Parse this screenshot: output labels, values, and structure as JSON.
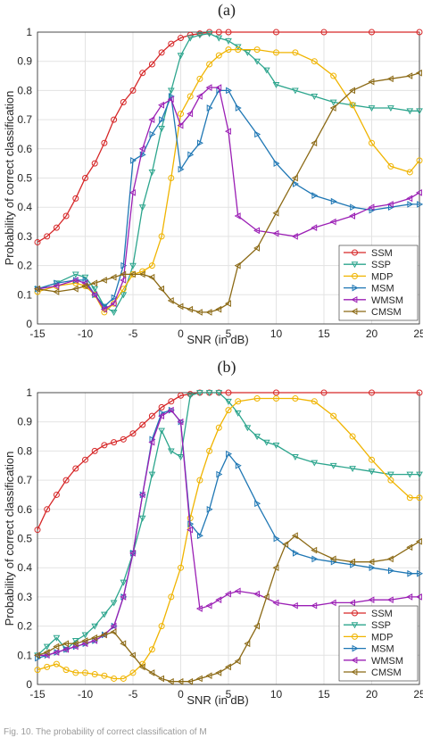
{
  "caption": "Fig. 10.   The probability of correct classification of M",
  "chart_data": [
    {
      "type": "line",
      "title": "(a)",
      "xlabel": "SNR (in dB)",
      "ylabel": "Probability of correct classification",
      "xlim": [
        -15,
        25
      ],
      "ylim": [
        0,
        1
      ],
      "xticks": [
        "-15",
        "-10",
        "-5",
        "0",
        "5",
        "10",
        "15",
        "20",
        "25"
      ],
      "yticks": [
        "0",
        "0.1",
        "0.2",
        "0.3",
        "0.4",
        "0.5",
        "0.6",
        "0.7",
        "0.8",
        "0.9",
        "1"
      ],
      "grid": true,
      "legend_position": "bottom-right",
      "series": [
        {
          "name": "SSM",
          "color": "#d62728",
          "marker": "circle",
          "x": [
            -15,
            -14,
            -13,
            -12,
            -11,
            -10,
            -9,
            -8,
            -7,
            -6,
            -5,
            -4,
            -3,
            -2,
            -1,
            0,
            1,
            2,
            3,
            4,
            5,
            10,
            15,
            20,
            25
          ],
          "y": [
            0.28,
            0.3,
            0.33,
            0.37,
            0.43,
            0.5,
            0.55,
            0.62,
            0.7,
            0.76,
            0.8,
            0.86,
            0.89,
            0.93,
            0.96,
            0.98,
            0.99,
            0.995,
            1,
            1,
            1,
            1,
            1,
            1,
            1
          ]
        },
        {
          "name": "SSP",
          "color": "#2ca58d",
          "marker": "triangle-down",
          "x": [
            -15,
            -13,
            -11,
            -10,
            -9,
            -8,
            -7,
            -6,
            -5,
            -4,
            -3,
            -2,
            -1,
            0,
            1,
            2,
            3,
            4,
            5,
            6,
            7,
            8,
            9,
            10,
            12,
            14,
            16,
            18,
            20,
            22,
            24,
            25
          ],
          "y": [
            0.12,
            0.14,
            0.17,
            0.16,
            0.12,
            0.06,
            0.04,
            0.1,
            0.2,
            0.4,
            0.52,
            0.67,
            0.8,
            0.92,
            0.98,
            0.99,
            0.995,
            0.98,
            0.97,
            0.95,
            0.93,
            0.9,
            0.87,
            0.82,
            0.8,
            0.78,
            0.76,
            0.75,
            0.74,
            0.74,
            0.73,
            0.73
          ]
        },
        {
          "name": "MDP",
          "color": "#f0b400",
          "marker": "circle",
          "x": [
            -15,
            -13,
            -11,
            -10,
            -9,
            -8,
            -7,
            -6,
            -5,
            -4,
            -3,
            -2,
            -1,
            0,
            1,
            2,
            3,
            4,
            5,
            6,
            8,
            10,
            12,
            14,
            16,
            18,
            20,
            22,
            24,
            25
          ],
          "y": [
            0.11,
            0.13,
            0.14,
            0.13,
            0.1,
            0.04,
            0.07,
            0.12,
            0.17,
            0.18,
            0.2,
            0.3,
            0.5,
            0.72,
            0.78,
            0.84,
            0.89,
            0.92,
            0.94,
            0.94,
            0.94,
            0.93,
            0.93,
            0.9,
            0.85,
            0.75,
            0.62,
            0.54,
            0.52,
            0.56
          ]
        },
        {
          "name": "MSM",
          "color": "#1f77b4",
          "marker": "triangle-right",
          "x": [
            -15,
            -13,
            -11,
            -10,
            -9,
            -8,
            -7,
            -6,
            -5,
            -4,
            -3,
            -2,
            -1,
            0,
            1,
            2,
            3,
            4,
            5,
            6,
            8,
            10,
            12,
            14,
            16,
            18,
            20,
            22,
            24,
            25
          ],
          "y": [
            0.12,
            0.14,
            0.15,
            0.15,
            0.1,
            0.06,
            0.09,
            0.2,
            0.56,
            0.58,
            0.65,
            0.7,
            0.78,
            0.53,
            0.58,
            0.62,
            0.74,
            0.8,
            0.8,
            0.74,
            0.65,
            0.55,
            0.48,
            0.44,
            0.42,
            0.4,
            0.39,
            0.4,
            0.41,
            0.41
          ]
        },
        {
          "name": "WMSM",
          "color": "#9b1fb5",
          "marker": "triangle-left",
          "x": [
            -15,
            -13,
            -11,
            -10,
            -9,
            -8,
            -7,
            -6,
            -5,
            -4,
            -3,
            -2,
            -1,
            0,
            1,
            2,
            3,
            4,
            5,
            6,
            8,
            10,
            12,
            14,
            16,
            18,
            20,
            22,
            24,
            25
          ],
          "y": [
            0.12,
            0.13,
            0.15,
            0.14,
            0.1,
            0.05,
            0.07,
            0.15,
            0.45,
            0.6,
            0.7,
            0.75,
            0.77,
            0.68,
            0.72,
            0.78,
            0.81,
            0.81,
            0.66,
            0.37,
            0.32,
            0.31,
            0.3,
            0.33,
            0.35,
            0.37,
            0.4,
            0.41,
            0.43,
            0.45
          ]
        },
        {
          "name": "CMSM",
          "color": "#8b6914",
          "marker": "triangle-left",
          "x": [
            -15,
            -13,
            -11,
            -10,
            -9,
            -8,
            -7,
            -6,
            -5,
            -4,
            -3,
            -2,
            -1,
            0,
            1,
            2,
            3,
            4,
            5,
            6,
            8,
            10,
            12,
            14,
            16,
            18,
            20,
            22,
            24,
            25
          ],
          "y": [
            0.12,
            0.11,
            0.12,
            0.13,
            0.14,
            0.15,
            0.16,
            0.17,
            0.17,
            0.17,
            0.16,
            0.12,
            0.08,
            0.06,
            0.05,
            0.04,
            0.04,
            0.05,
            0.07,
            0.2,
            0.26,
            0.38,
            0.5,
            0.62,
            0.74,
            0.8,
            0.83,
            0.84,
            0.85,
            0.86
          ]
        }
      ]
    },
    {
      "type": "line",
      "title": "(b)",
      "xlabel": "SNR (in dB)",
      "ylabel": "Probability of correct classification",
      "xlim": [
        -15,
        25
      ],
      "ylim": [
        0,
        1
      ],
      "xticks": [
        "-15",
        "-10",
        "-5",
        "0",
        "5",
        "10",
        "15",
        "20",
        "25"
      ],
      "yticks": [
        "0",
        "0.1",
        "0.2",
        "0.3",
        "0.4",
        "0.5",
        "0.6",
        "0.7",
        "0.8",
        "0.9",
        "1"
      ],
      "grid": true,
      "legend_position": "bottom-right",
      "series": [
        {
          "name": "SSM",
          "color": "#d62728",
          "marker": "circle",
          "x": [
            -15,
            -14,
            -13,
            -12,
            -11,
            -10,
            -9,
            -8,
            -7,
            -6,
            -5,
            -4,
            -3,
            -2,
            -1,
            0,
            1,
            2,
            3,
            4,
            5,
            10,
            15,
            20,
            25
          ],
          "y": [
            0.53,
            0.6,
            0.65,
            0.7,
            0.74,
            0.77,
            0.8,
            0.82,
            0.83,
            0.84,
            0.86,
            0.89,
            0.92,
            0.95,
            0.97,
            0.99,
            0.995,
            1,
            1,
            1,
            1,
            1,
            1,
            1,
            1
          ]
        },
        {
          "name": "SSP",
          "color": "#2ca58d",
          "marker": "triangle-down",
          "x": [
            -15,
            -14,
            -13,
            -12,
            -11,
            -10,
            -9,
            -8,
            -7,
            -6,
            -5,
            -4,
            -3,
            -2,
            -1,
            0,
            1,
            2,
            3,
            4,
            5,
            6,
            7,
            8,
            9,
            10,
            12,
            14,
            16,
            18,
            20,
            22,
            24,
            25
          ],
          "y": [
            0.1,
            0.13,
            0.16,
            0.12,
            0.15,
            0.17,
            0.2,
            0.24,
            0.28,
            0.35,
            0.45,
            0.57,
            0.72,
            0.87,
            0.8,
            0.78,
            0.99,
            1,
            1,
            1,
            0.97,
            0.93,
            0.88,
            0.85,
            0.83,
            0.82,
            0.78,
            0.76,
            0.75,
            0.74,
            0.73,
            0.72,
            0.72,
            0.72
          ]
        },
        {
          "name": "MDP",
          "color": "#f0b400",
          "marker": "circle",
          "x": [
            -15,
            -14,
            -13,
            -12,
            -11,
            -10,
            -9,
            -8,
            -7,
            -6,
            -5,
            -4,
            -3,
            -2,
            -1,
            0,
            1,
            2,
            3,
            4,
            5,
            6,
            8,
            10,
            12,
            14,
            16,
            18,
            20,
            22,
            24,
            25
          ],
          "y": [
            0.05,
            0.06,
            0.07,
            0.05,
            0.04,
            0.04,
            0.035,
            0.03,
            0.02,
            0.02,
            0.04,
            0.07,
            0.12,
            0.2,
            0.3,
            0.4,
            0.57,
            0.7,
            0.8,
            0.88,
            0.94,
            0.97,
            0.98,
            0.98,
            0.98,
            0.97,
            0.92,
            0.85,
            0.77,
            0.7,
            0.64,
            0.64
          ]
        },
        {
          "name": "MSM",
          "color": "#1f77b4",
          "marker": "triangle-right",
          "x": [
            -15,
            -14,
            -13,
            -12,
            -11,
            -10,
            -9,
            -8,
            -7,
            -6,
            -5,
            -4,
            -3,
            -2,
            -1,
            0,
            1,
            2,
            3,
            4,
            5,
            6,
            8,
            10,
            12,
            14,
            16,
            18,
            20,
            22,
            24,
            25
          ],
          "y": [
            0.09,
            0.1,
            0.11,
            0.12,
            0.13,
            0.14,
            0.15,
            0.17,
            0.2,
            0.3,
            0.45,
            0.65,
            0.84,
            0.93,
            0.94,
            0.9,
            0.55,
            0.51,
            0.6,
            0.72,
            0.79,
            0.75,
            0.62,
            0.5,
            0.45,
            0.43,
            0.42,
            0.41,
            0.4,
            0.39,
            0.38,
            0.38
          ]
        },
        {
          "name": "WMSM",
          "color": "#9b1fb5",
          "marker": "triangle-left",
          "x": [
            -15,
            -14,
            -13,
            -12,
            -11,
            -10,
            -9,
            -8,
            -7,
            -6,
            -5,
            -4,
            -3,
            -2,
            -1,
            0,
            1,
            2,
            3,
            4,
            5,
            6,
            8,
            10,
            12,
            14,
            16,
            18,
            20,
            22,
            24,
            25
          ],
          "y": [
            0.1,
            0.1,
            0.11,
            0.12,
            0.13,
            0.14,
            0.15,
            0.17,
            0.2,
            0.3,
            0.45,
            0.65,
            0.83,
            0.92,
            0.94,
            0.9,
            0.53,
            0.26,
            0.27,
            0.29,
            0.31,
            0.32,
            0.31,
            0.28,
            0.27,
            0.27,
            0.28,
            0.28,
            0.29,
            0.29,
            0.3,
            0.3
          ]
        },
        {
          "name": "CMSM",
          "color": "#8b6914",
          "marker": "triangle-left",
          "x": [
            -15,
            -14,
            -13,
            -12,
            -11,
            -10,
            -9,
            -8,
            -7,
            -6,
            -5,
            -4,
            -3,
            -2,
            -1,
            0,
            1,
            2,
            3,
            4,
            5,
            6,
            7,
            8,
            9,
            10,
            11,
            12,
            14,
            16,
            18,
            20,
            22,
            24,
            25
          ],
          "y": [
            0.1,
            0.11,
            0.13,
            0.14,
            0.14,
            0.15,
            0.16,
            0.17,
            0.18,
            0.14,
            0.1,
            0.06,
            0.04,
            0.02,
            0.01,
            0.01,
            0.01,
            0.02,
            0.03,
            0.04,
            0.06,
            0.08,
            0.14,
            0.2,
            0.3,
            0.4,
            0.48,
            0.51,
            0.46,
            0.43,
            0.42,
            0.42,
            0.43,
            0.47,
            0.49
          ]
        }
      ]
    }
  ]
}
